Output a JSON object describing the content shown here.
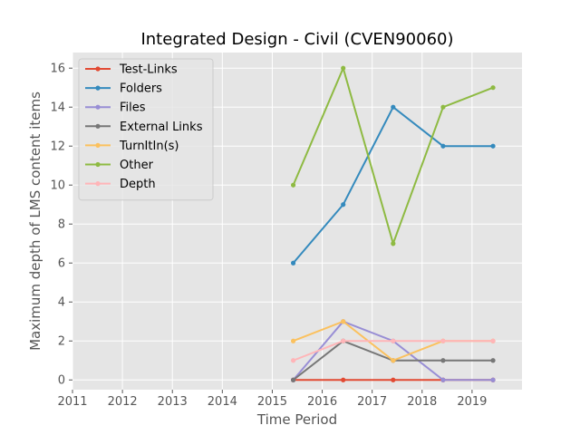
{
  "chart_data": {
    "type": "line",
    "title": "Integrated Design - Civil (CVEN90060)",
    "xlabel": "Time Period",
    "ylabel": "Maximum depth of LMS content items",
    "x": [
      2015.42,
      2016.42,
      2017.42,
      2018.42,
      2019.42
    ],
    "xlim": [
      2011,
      2020
    ],
    "ylim": [
      -0.5,
      16.8
    ],
    "xticks": [
      "2011",
      "2012",
      "2013",
      "2014",
      "2015",
      "2016",
      "2017",
      "2018",
      "2019"
    ],
    "yticks": [
      "0",
      "2",
      "4",
      "6",
      "8",
      "10",
      "12",
      "14",
      "16"
    ],
    "grid": true,
    "legend_position": "top-left",
    "series": [
      {
        "name": "Test-Links",
        "color": "#E24A33",
        "values": [
          0,
          0,
          0,
          0,
          0
        ]
      },
      {
        "name": "Folders",
        "color": "#348ABD",
        "values": [
          6,
          9,
          14,
          12,
          12
        ]
      },
      {
        "name": "Files",
        "color": "#988ED5",
        "values": [
          0,
          3,
          2,
          0,
          0
        ]
      },
      {
        "name": "External Links",
        "color": "#777777",
        "values": [
          0,
          2,
          1,
          1,
          1
        ]
      },
      {
        "name": "TurnItIn(s)",
        "color": "#FBC15E",
        "values": [
          2,
          3,
          1,
          2,
          2
        ]
      },
      {
        "name": "Other",
        "color": "#8EBA42",
        "values": [
          10,
          16,
          7,
          14,
          15
        ]
      },
      {
        "name": "Depth",
        "color": "#FFB5B8",
        "values": [
          1,
          2,
          2,
          2,
          2
        ]
      }
    ]
  }
}
